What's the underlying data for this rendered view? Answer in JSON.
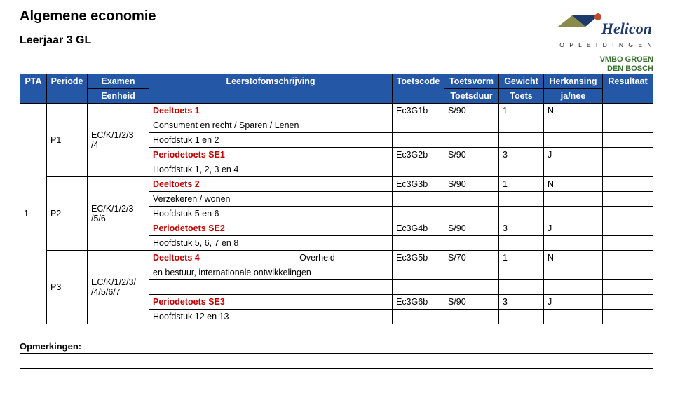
{
  "header": {
    "title": "Algemene economie",
    "subtitle": "Leerjaar 3 GL",
    "logo_top": "Helicon",
    "logo_sub": "O P L E I D I N G E N",
    "logo_line1": "VMBO GROEN",
    "logo_line2": "DEN BOSCH"
  },
  "table": {
    "header_bg": "#2457a5",
    "header_fg": "#ffffff",
    "red": "#c00000",
    "columns": {
      "pta": "PTA",
      "periode": "Periode",
      "examen": "Examen",
      "eenheid": "Eenheid",
      "leerstof": "Leerstofomschrijving",
      "toetscode": "Toetscode",
      "toetsvorm": "Toetsvorm",
      "toetsduur": "Toetsduur",
      "gewicht": "Gewicht",
      "toets": "Toets",
      "herkansing": "Herkansing",
      "janee": "ja/nee",
      "resultaat": "Resultaat"
    },
    "pta_value": "1",
    "rows": [
      {
        "periode": "P1",
        "eenheid": [
          "EC/K/1/2/3",
          "/4"
        ],
        "lines": [
          {
            "omschrijving": "Deeltoets 1",
            "red": true,
            "bold": true,
            "code": "Ec3G1b",
            "vorm": "S/90",
            "gewicht": "1",
            "herk": "N"
          },
          {
            "omschrijving": "Consument en recht / Sparen / Lenen"
          },
          {
            "omschrijving": "Hoofdstuk 1 en 2"
          },
          {
            "omschrijving": "Periodetoets SE1",
            "red": true,
            "bold": true,
            "code": "Ec3G2b",
            "vorm": "S/90",
            "gewicht": "3",
            "herk": "J"
          },
          {
            "omschrijving": "Hoofdstuk 1, 2, 3 en 4"
          }
        ]
      },
      {
        "periode": "P2",
        "eenheid": [
          "EC/K/1/2/3",
          "/5/6"
        ],
        "lines": [
          {
            "omschrijving": "Deeltoets  2",
            "red": true,
            "bold": true,
            "code": "Ec3G3b",
            "vorm": "S/90",
            "gewicht": "1",
            "herk": "N"
          },
          {
            "omschrijving": "Verzekeren / wonen"
          },
          {
            "omschrijving": "Hoofdstuk 5 en 6"
          },
          {
            "omschrijving": "Periodetoets SE2",
            "red": true,
            "bold": true,
            "code": "Ec3G4b",
            "vorm": "S/90",
            "gewicht": "3",
            "herk": "J"
          },
          {
            "omschrijving": "Hoofdstuk 5, 6, 7 en 8"
          }
        ]
      },
      {
        "periode": "P3",
        "eenheid": [
          "EC/K/1/2/3/",
          "/4/5/6/7"
        ],
        "lines": [
          {
            "omschrijving_html": "<span class='bold redcell'>Deeltoets 4</span>&nbsp;&nbsp;&nbsp;&nbsp;&nbsp;&nbsp;&nbsp;&nbsp;&nbsp;&nbsp;&nbsp;&nbsp;&nbsp;&nbsp;&nbsp;&nbsp;&nbsp;&nbsp;&nbsp;&nbsp;&nbsp;&nbsp;&nbsp;&nbsp;&nbsp;&nbsp;&nbsp;&nbsp;&nbsp;&nbsp;&nbsp;&nbsp;&nbsp;&nbsp;&nbsp;&nbsp;&nbsp;&nbsp;&nbsp;&nbsp;&nbsp;Overheid",
            "code": "Ec3G5b",
            "vorm": "S/70",
            "gewicht": "1",
            "herk": "N"
          },
          {
            "omschrijving": "en bestuur, internationale ontwikkelingen"
          },
          {
            "omschrijving": ""
          },
          {
            "omschrijving": "Periodetoets SE3",
            "red": true,
            "bold": true,
            "code": "Ec3G6b",
            "vorm": "S/90",
            "gewicht": "3",
            "herk": "J"
          },
          {
            "omschrijving": "Hoofdstuk 12 en 13"
          }
        ]
      }
    ]
  },
  "remarks": {
    "label": "Opmerkingen:"
  }
}
